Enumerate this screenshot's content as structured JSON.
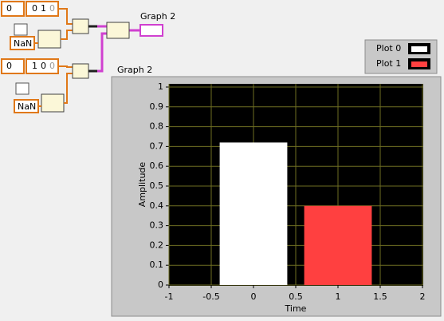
{
  "diagram": {
    "arrays": [
      {
        "index": 0,
        "elements": [
          0,
          1,
          0
        ]
      },
      {
        "index": 0,
        "elements": [
          1,
          0,
          0
        ]
      }
    ],
    "constants": [
      "NaN",
      "NaN"
    ],
    "terminal_label": "Graph 2"
  },
  "chart_data": {
    "type": "bar",
    "title": "Graph 2",
    "xlabel": "Time",
    "ylabel": "Amplitude",
    "x": [
      0,
      1
    ],
    "series": [
      {
        "name": "Plot 0",
        "color": "#ffffff",
        "values": [
          0.72,
          null
        ]
      },
      {
        "name": "Plot 1",
        "color": "#ff4040",
        "values": [
          null,
          0.4
        ]
      }
    ],
    "xlim": [
      -1,
      2
    ],
    "ylim": [
      0,
      1
    ],
    "xticks": [
      -1,
      -0.5,
      0,
      0.5,
      1,
      1.5,
      2
    ],
    "yticks": [
      0,
      0.1,
      0.2,
      0.3,
      0.4,
      0.5,
      0.6,
      0.7,
      0.8,
      0.9,
      1
    ],
    "grid": true,
    "legend": "top-right"
  }
}
